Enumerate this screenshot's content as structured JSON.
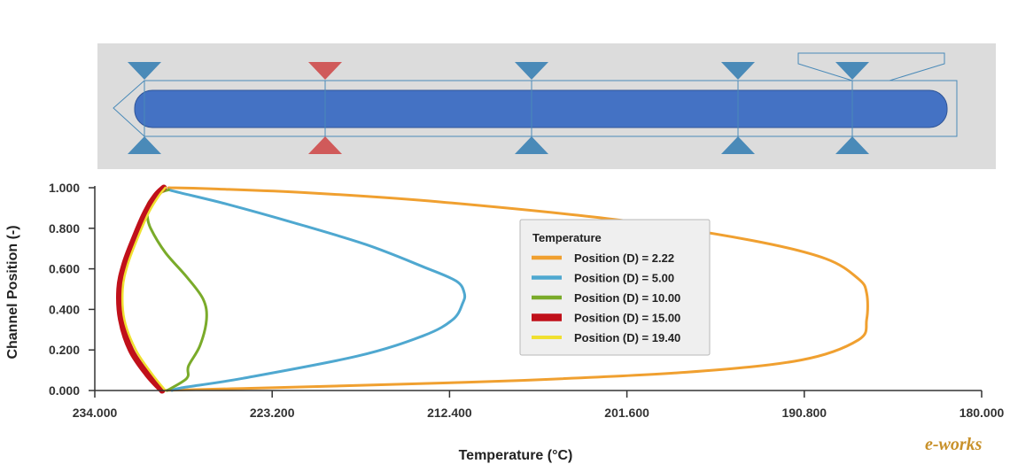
{
  "schematic": {
    "colors": {
      "background": "#dcdcdc",
      "channel": "#4472c4",
      "outline": "#4a8ab8",
      "gate_blue": "#4a8ab8",
      "gate_red": "#d05a5a"
    },
    "gates": [
      {
        "id": "gate-1",
        "color": "blue"
      },
      {
        "id": "gate-2",
        "color": "red"
      },
      {
        "id": "gate-3",
        "color": "blue"
      },
      {
        "id": "gate-4",
        "color": "blue"
      },
      {
        "id": "gate-5",
        "color": "blue"
      }
    ]
  },
  "chart_data": {
    "type": "line",
    "xlabel": "Temperature (°C)",
    "ylabel": "Channel Position (-)",
    "xlim": [
      234.0,
      180.0
    ],
    "ylim": [
      0.0,
      1.0
    ],
    "x_reversed": true,
    "x_ticks": [
      "234.000",
      "223.200",
      "212.400",
      "201.600",
      "190.800",
      "180.000"
    ],
    "y_ticks": [
      "0.000",
      "0.200",
      "0.400",
      "0.600",
      "0.800",
      "1.000"
    ],
    "grid": false,
    "legend": {
      "title": "Temperature",
      "placement": "center"
    },
    "series": [
      {
        "name": "Position (D) = 2.22",
        "color": "#f0a030",
        "width": 3,
        "points": [
          [
            230.0,
            0.0
          ],
          [
            225.0,
            0.01
          ],
          [
            218.0,
            0.025
          ],
          [
            208.0,
            0.05
          ],
          [
            198.0,
            0.09
          ],
          [
            191.0,
            0.15
          ],
          [
            187.5,
            0.25
          ],
          [
            187.0,
            0.35
          ],
          [
            187.0,
            0.48
          ],
          [
            187.5,
            0.55
          ],
          [
            189.5,
            0.65
          ],
          [
            194.0,
            0.74
          ],
          [
            202.0,
            0.84
          ],
          [
            213.0,
            0.93
          ],
          [
            221.0,
            0.975
          ],
          [
            227.0,
            0.995
          ],
          [
            229.5,
            1.0
          ]
        ]
      },
      {
        "name": "Position (D) = 5.00",
        "color": "#4fa8d0",
        "width": 3,
        "points": [
          [
            229.3,
            0.0
          ],
          [
            228.6,
            0.015
          ],
          [
            225.0,
            0.06
          ],
          [
            218.0,
            0.17
          ],
          [
            214.0,
            0.27
          ],
          [
            212.2,
            0.35
          ],
          [
            211.6,
            0.43
          ],
          [
            211.5,
            0.48
          ],
          [
            212.0,
            0.54
          ],
          [
            214.0,
            0.61
          ],
          [
            217.5,
            0.72
          ],
          [
            222.0,
            0.83
          ],
          [
            226.0,
            0.92
          ],
          [
            228.8,
            0.975
          ],
          [
            229.5,
            0.99
          ]
        ]
      },
      {
        "name": "Position (D) = 10.00",
        "color": "#7aab2a",
        "width": 3,
        "points": [
          [
            229.6,
            0.0
          ],
          [
            228.4,
            0.06
          ],
          [
            228.3,
            0.12
          ],
          [
            227.6,
            0.22
          ],
          [
            227.2,
            0.35
          ],
          [
            227.4,
            0.45
          ],
          [
            228.4,
            0.56
          ],
          [
            229.7,
            0.68
          ],
          [
            230.6,
            0.8
          ],
          [
            230.8,
            0.86
          ],
          [
            230.8,
            0.91
          ],
          [
            230.6,
            0.94
          ],
          [
            230.2,
            0.965
          ],
          [
            229.9,
            0.98
          ],
          [
            229.5,
            0.99
          ]
        ]
      },
      {
        "name": "Position (D) = 15.00",
        "color": "#c0101a",
        "width": 7,
        "points": [
          [
            229.9,
            0.0
          ],
          [
            230.8,
            0.08
          ],
          [
            231.8,
            0.2
          ],
          [
            232.4,
            0.35
          ],
          [
            232.5,
            0.5
          ],
          [
            232.2,
            0.62
          ],
          [
            231.6,
            0.75
          ],
          [
            230.9,
            0.88
          ],
          [
            230.3,
            0.96
          ],
          [
            229.8,
            1.0
          ]
        ]
      },
      {
        "name": "Position (D) = 19.40",
        "color": "#f0e030",
        "width": 2.5,
        "points": [
          [
            229.7,
            0.0
          ],
          [
            230.5,
            0.08
          ],
          [
            231.5,
            0.2
          ],
          [
            232.2,
            0.35
          ],
          [
            232.3,
            0.5
          ],
          [
            232.0,
            0.62
          ],
          [
            231.4,
            0.75
          ],
          [
            230.7,
            0.88
          ],
          [
            230.1,
            0.96
          ],
          [
            229.7,
            1.0
          ]
        ]
      }
    ]
  },
  "watermark": {
    "logo": "e-works"
  }
}
